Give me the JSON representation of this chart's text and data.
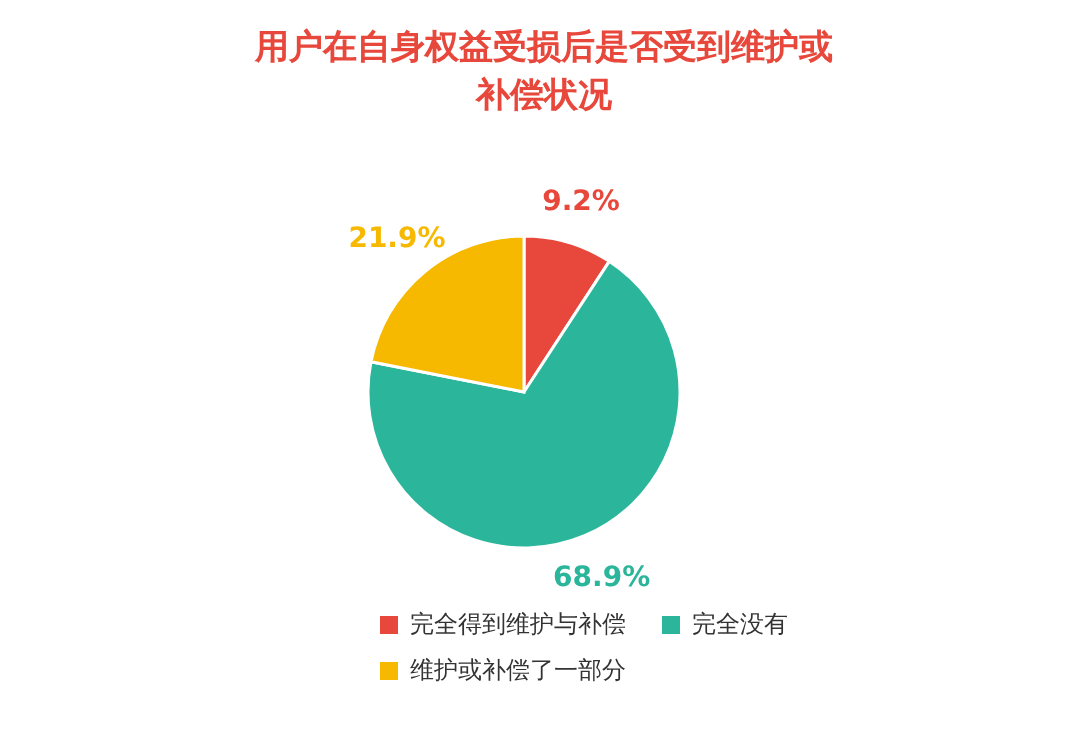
{
  "chart_data": {
    "type": "pie",
    "title": "用户在自身权益受损后是否受到维护或补偿状况",
    "categories": [
      "完全得到维护与补偿",
      "完全没有",
      "维护或补偿了一部分"
    ],
    "values": [
      9.2,
      68.9,
      21.9
    ],
    "colors": [
      "#e8483b",
      "#2bb59a",
      "#f7b900"
    ],
    "value_labels": [
      "9.2%",
      "68.9%",
      "21.9%"
    ],
    "legend": "bottom"
  }
}
